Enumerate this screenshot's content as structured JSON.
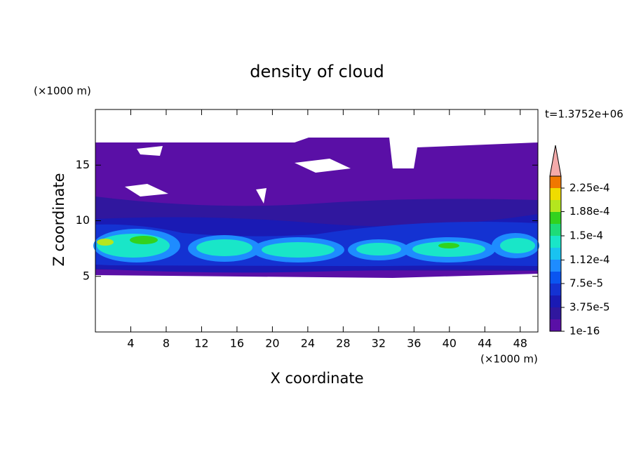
{
  "chart_data": {
    "type": "contour",
    "title": "density of cloud",
    "y_unit": "(×1000 m)",
    "x_unit": "(×1000 m)",
    "time_label": "t=1.3752e+06",
    "xlabel": "X coordinate",
    "ylabel": "Z coordinate",
    "xlim": [
      0,
      50
    ],
    "ylim": [
      0,
      20
    ],
    "xticks": [
      4,
      8,
      12,
      16,
      20,
      24,
      28,
      32,
      36,
      40,
      44,
      48
    ],
    "yticks": [
      5,
      10,
      15
    ],
    "colorbar": {
      "lim": [
        1e-16,
        0.00024375
      ],
      "ticks": [
        1e-16,
        {
          "value": 3.75e-05,
          "label": "3.75e-5"
        },
        {
          "value": 7.5e-05,
          "label": "7.5e-5"
        },
        {
          "value": 0.000112,
          "label": "1.12e-4"
        },
        {
          "value": 0.00015,
          "label": "1.5e-4"
        },
        {
          "value": 0.000188,
          "label": "1.88e-4"
        },
        {
          "value": 0.000225,
          "label": "2.25e-4"
        }
      ],
      "colors": [
        "#5a0fa6",
        "#30179e",
        "#1a1ab4",
        "#1432d2",
        "#0a55f0",
        "#1e8cff",
        "#19c3f0",
        "#19e6c8",
        "#1edc78",
        "#32d21e",
        "#b4e61e",
        "#f0dc00",
        "#f07800"
      ],
      "extend_color": "#f4aaaa"
    }
  }
}
